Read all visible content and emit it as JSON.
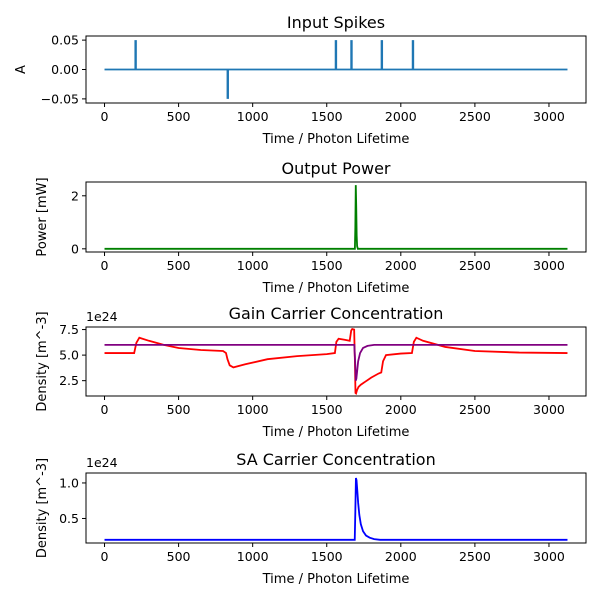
{
  "chart_data": [
    {
      "type": "line",
      "title": "Input Spikes",
      "xlabel": "Time / Photon Lifetime",
      "ylabel": "A",
      "offset_text": "",
      "xlim": [
        -125,
        3250
      ],
      "ylim": [
        -0.057,
        0.057
      ],
      "xticks": [
        0,
        500,
        1000,
        1500,
        2000,
        2500,
        3000
      ],
      "yticks": [
        0.05,
        0.0,
        -0.05
      ],
      "ytick_labels": [
        "0.05",
        "0.00",
        "−0.05"
      ],
      "series": [
        {
          "color": "#1f77b4",
          "x": [
            0,
            208,
            208,
            208,
            212,
            212,
            212,
            830,
            830,
            830,
            834,
            834,
            834,
            1560,
            1560,
            1560,
            1564,
            1564,
            1564,
            1665,
            1665,
            1665,
            1669,
            1669,
            1669,
            1870,
            1870,
            1870,
            1874,
            1874,
            1874,
            2080,
            2080,
            2080,
            2084,
            2084,
            2084,
            3125
          ],
          "y": [
            0,
            0,
            0.05,
            0,
            0.05,
            0.05,
            0,
            0,
            -0.05,
            0,
            -0.05,
            -0.05,
            0,
            0,
            0.05,
            0,
            0.05,
            0.05,
            0,
            0,
            0.05,
            0,
            0.05,
            0.05,
            0,
            0,
            0.05,
            0,
            0.05,
            0.05,
            0,
            0,
            0.05,
            0,
            0.05,
            0.05,
            0,
            0
          ]
        }
      ]
    },
    {
      "type": "line",
      "title": "Output Power",
      "xlabel": "Time / Photon Lifetime",
      "ylabel": "Power [mW]",
      "offset_text": "",
      "xlim": [
        -125,
        3250
      ],
      "ylim": [
        -0.12,
        2.52
      ],
      "xticks": [
        0,
        500,
        1000,
        1500,
        2000,
        2500,
        3000
      ],
      "yticks": [
        0,
        2
      ],
      "ytick_labels": [
        "0",
        "2"
      ],
      "series": [
        {
          "color": "#008000",
          "x": [
            0,
            1690,
            1693,
            1696,
            1699,
            1702,
            1705,
            1710,
            3125
          ],
          "y": [
            0,
            0,
            0.8,
            2.4,
            1.6,
            0.5,
            0.1,
            0,
            0
          ]
        }
      ]
    },
    {
      "type": "line",
      "title": "Gain Carrier Concentration",
      "xlabel": "Time / Photon Lifetime",
      "ylabel": "Density [m^-3]",
      "offset_text": "1e24",
      "xlim": [
        -125,
        3250
      ],
      "ylim": [
        1.0,
        7.75
      ],
      "xticks": [
        0,
        500,
        1000,
        1500,
        2000,
        2500,
        3000
      ],
      "yticks": [
        2.5,
        5.0,
        7.5
      ],
      "ytick_labels": [
        "2.5",
        "5.0",
        "7.5"
      ],
      "series": [
        {
          "color": "#ff0000",
          "x": [
            0,
            200,
            215,
            235,
            300,
            400,
            500,
            650,
            800,
            820,
            830,
            845,
            870,
            950,
            1100,
            1300,
            1500,
            1555,
            1565,
            1580,
            1620,
            1655,
            1665,
            1672,
            1685,
            1690,
            1694,
            1698,
            1705,
            1715,
            1730,
            1760,
            1800,
            1850,
            1868,
            1880,
            1900,
            2000,
            2075,
            2088,
            2105,
            2150,
            2300,
            2500,
            2800,
            3125
          ],
          "y": [
            5.2,
            5.2,
            6.2,
            6.7,
            6.4,
            6.0,
            5.7,
            5.5,
            5.4,
            5.2,
            4.6,
            4.0,
            3.8,
            4.1,
            4.6,
            4.9,
            5.1,
            5.2,
            6.3,
            6.6,
            6.5,
            6.4,
            7.4,
            7.55,
            7.5,
            4.5,
            1.3,
            1.25,
            1.6,
            1.9,
            2.1,
            2.4,
            2.8,
            3.2,
            3.3,
            4.4,
            5.0,
            5.15,
            5.2,
            6.3,
            6.7,
            6.4,
            5.8,
            5.4,
            5.25,
            5.2
          ]
        },
        {
          "color": "#800080",
          "x": [
            0,
            1686,
            1692,
            1696,
            1700,
            1705,
            1712,
            1725,
            1745,
            1775,
            1820,
            1900,
            3125
          ],
          "y": [
            6.0,
            6.0,
            4.2,
            2.5,
            2.7,
            3.4,
            4.4,
            5.2,
            5.7,
            5.9,
            6.0,
            6.0,
            6.0
          ]
        }
      ]
    },
    {
      "type": "line",
      "title": "SA Carrier Concentration",
      "xlabel": "Time / Photon Lifetime",
      "ylabel": "Density [m^-3]",
      "offset_text": "1e24",
      "xlim": [
        -125,
        3250
      ],
      "ylim": [
        0.155,
        1.14
      ],
      "xticks": [
        0,
        500,
        1000,
        1500,
        2000,
        2500,
        3000
      ],
      "yticks": [
        0.5,
        1.0
      ],
      "ytick_labels": [
        "0.5",
        "1.0"
      ],
      "series": [
        {
          "color": "#0000ff",
          "x": [
            0,
            1689,
            1693,
            1697,
            1701,
            1706,
            1712,
            1720,
            1730,
            1745,
            1765,
            1790,
            1820,
            1860,
            3125
          ],
          "y": [
            0.2,
            0.2,
            0.6,
            1.07,
            1.04,
            0.9,
            0.72,
            0.55,
            0.42,
            0.32,
            0.26,
            0.23,
            0.21,
            0.2,
            0.2
          ]
        }
      ]
    }
  ]
}
